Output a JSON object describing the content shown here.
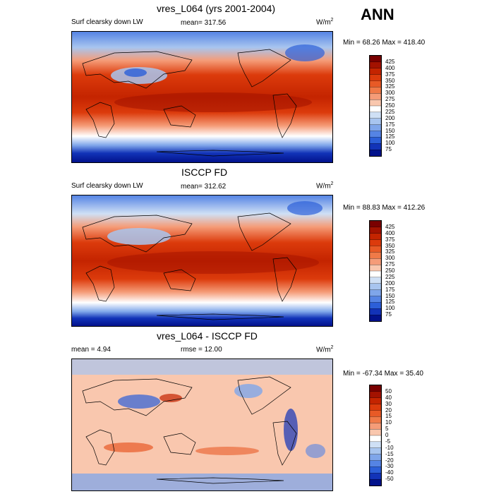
{
  "season": "ANN",
  "panels": [
    {
      "title": "vres_L064 (yrs 2001-2004)",
      "left_label": "Surf clearsky down LW",
      "center_label": "mean= 317.56",
      "units": "W/m",
      "units_sup": "2",
      "minmax": "Min =  68.26 Max = 418.40"
    },
    {
      "title": "ISCCP FD",
      "left_label": "Surf clearsky down LW",
      "center_label": "mean= 312.62",
      "units": "W/m",
      "units_sup": "2",
      "minmax": "Min =  88.83 Max = 412.26"
    },
    {
      "title": "vres_L064 - ISCCP FD",
      "left_label": "mean =   4.94",
      "center_label": "rmse =  12.00",
      "units": "W/m",
      "units_sup": "2",
      "minmax": "Min = -67.34 Max =  35.40"
    }
  ],
  "colorbar_abs": {
    "labels": [
      "425",
      "400",
      "375",
      "350",
      "325",
      "300",
      "275",
      "250",
      "225",
      "200",
      "175",
      "150",
      "125",
      "100",
      "75"
    ],
    "colors": [
      "#7a0000",
      "#a31200",
      "#c42400",
      "#dc3b0c",
      "#e85a26",
      "#f07a48",
      "#f59c78",
      "#f9c7ae",
      "#ffffff",
      "#cfe0f5",
      "#a8c5ef",
      "#7fa6ea",
      "#5584e4",
      "#2c5fd8",
      "#1233b8",
      "#02128c"
    ]
  },
  "colorbar_diff": {
    "labels": [
      "50",
      "40",
      "30",
      "20",
      "15",
      "10",
      "5",
      "0",
      "-5",
      "-10",
      "-15",
      "-20",
      "-30",
      "-40",
      "-50"
    ],
    "colors": [
      "#7a0000",
      "#a31200",
      "#c42400",
      "#dc3b0c",
      "#e85a26",
      "#f07a48",
      "#f59c78",
      "#f9c7ae",
      "#ffffff",
      "#cfe0f5",
      "#a8c5ef",
      "#7fa6ea",
      "#5584e4",
      "#2c5fd8",
      "#1233b8",
      "#02128c"
    ]
  },
  "chart_data": [
    {
      "type": "heatmap",
      "title": "vres_L064 (yrs 2001-2004)",
      "variable": "Surf clearsky down LW",
      "units": "W/m2",
      "mean": 317.56,
      "min": 68.26,
      "max": 418.4,
      "levels": [
        75,
        100,
        125,
        150,
        175,
        200,
        225,
        250,
        275,
        300,
        325,
        350,
        375,
        400,
        425
      ]
    },
    {
      "type": "heatmap",
      "title": "ISCCP FD",
      "variable": "Surf clearsky down LW",
      "units": "W/m2",
      "mean": 312.62,
      "min": 88.83,
      "max": 412.26,
      "levels": [
        75,
        100,
        125,
        150,
        175,
        200,
        225,
        250,
        275,
        300,
        325,
        350,
        375,
        400,
        425
      ]
    },
    {
      "type": "heatmap",
      "title": "vres_L064 - ISCCP FD",
      "units": "W/m2",
      "mean": 4.94,
      "rmse": 12.0,
      "min": -67.34,
      "max": 35.4,
      "levels": [
        -50,
        -40,
        -30,
        -20,
        -15,
        -10,
        -5,
        0,
        5,
        10,
        15,
        20,
        30,
        40,
        50
      ]
    }
  ]
}
